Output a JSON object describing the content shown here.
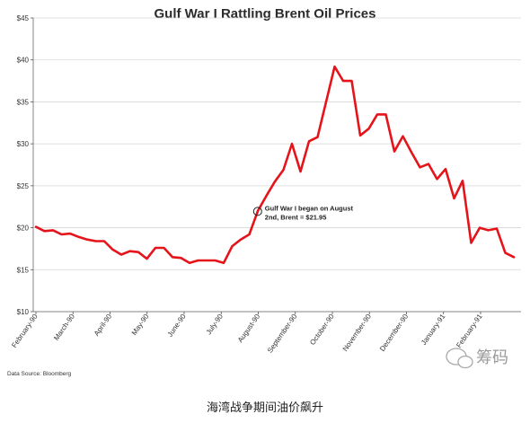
{
  "chart_data": {
    "type": "line",
    "title": "Gulf War I Rattling Brent Oil Prices",
    "ylim": [
      10,
      45
    ],
    "yticks": [
      "$10",
      "$15",
      "$20",
      "$25",
      "$30",
      "$35",
      "$40",
      "$45"
    ],
    "ytick_values": [
      10,
      15,
      20,
      25,
      30,
      35,
      40,
      45
    ],
    "xticks": [
      "February-90",
      "March-90",
      "April-90",
      "May-90",
      "June-90",
      "July-90",
      "August-90",
      "September-90",
      "October-90",
      "November-90",
      "December-90",
      "January-91",
      "February-91"
    ],
    "series": [
      {
        "color": "#e5141b",
        "values": [
          20.1,
          19.6,
          19.7,
          19.2,
          19.3,
          18.9,
          18.6,
          18.4,
          18.4,
          17.4,
          16.8,
          17.2,
          17.1,
          16.3,
          17.6,
          17.6,
          16.5,
          16.4,
          15.8,
          16.1,
          16.1,
          16.1,
          15.8,
          17.8,
          18.6,
          19.2,
          22.0,
          23.8,
          25.5,
          26.9,
          30.0,
          26.7,
          30.3,
          30.8,
          35.0,
          39.2,
          37.5,
          37.5,
          31.0,
          31.8,
          33.5,
          33.5,
          29.1,
          30.9,
          29.0,
          27.2,
          27.6,
          25.8,
          27.0,
          23.5,
          25.6,
          18.2,
          20.0,
          19.7,
          19.9,
          17.0,
          16.5
        ]
      }
    ],
    "annotation": {
      "text_lines": [
        "Gulf War I began on August",
        "2nd, Brent = $21.95"
      ],
      "value": 21.95
    },
    "source": "Data Source: Bloomberg"
  },
  "watermark": "筹码",
  "caption": "海湾战争期间油价飙升"
}
